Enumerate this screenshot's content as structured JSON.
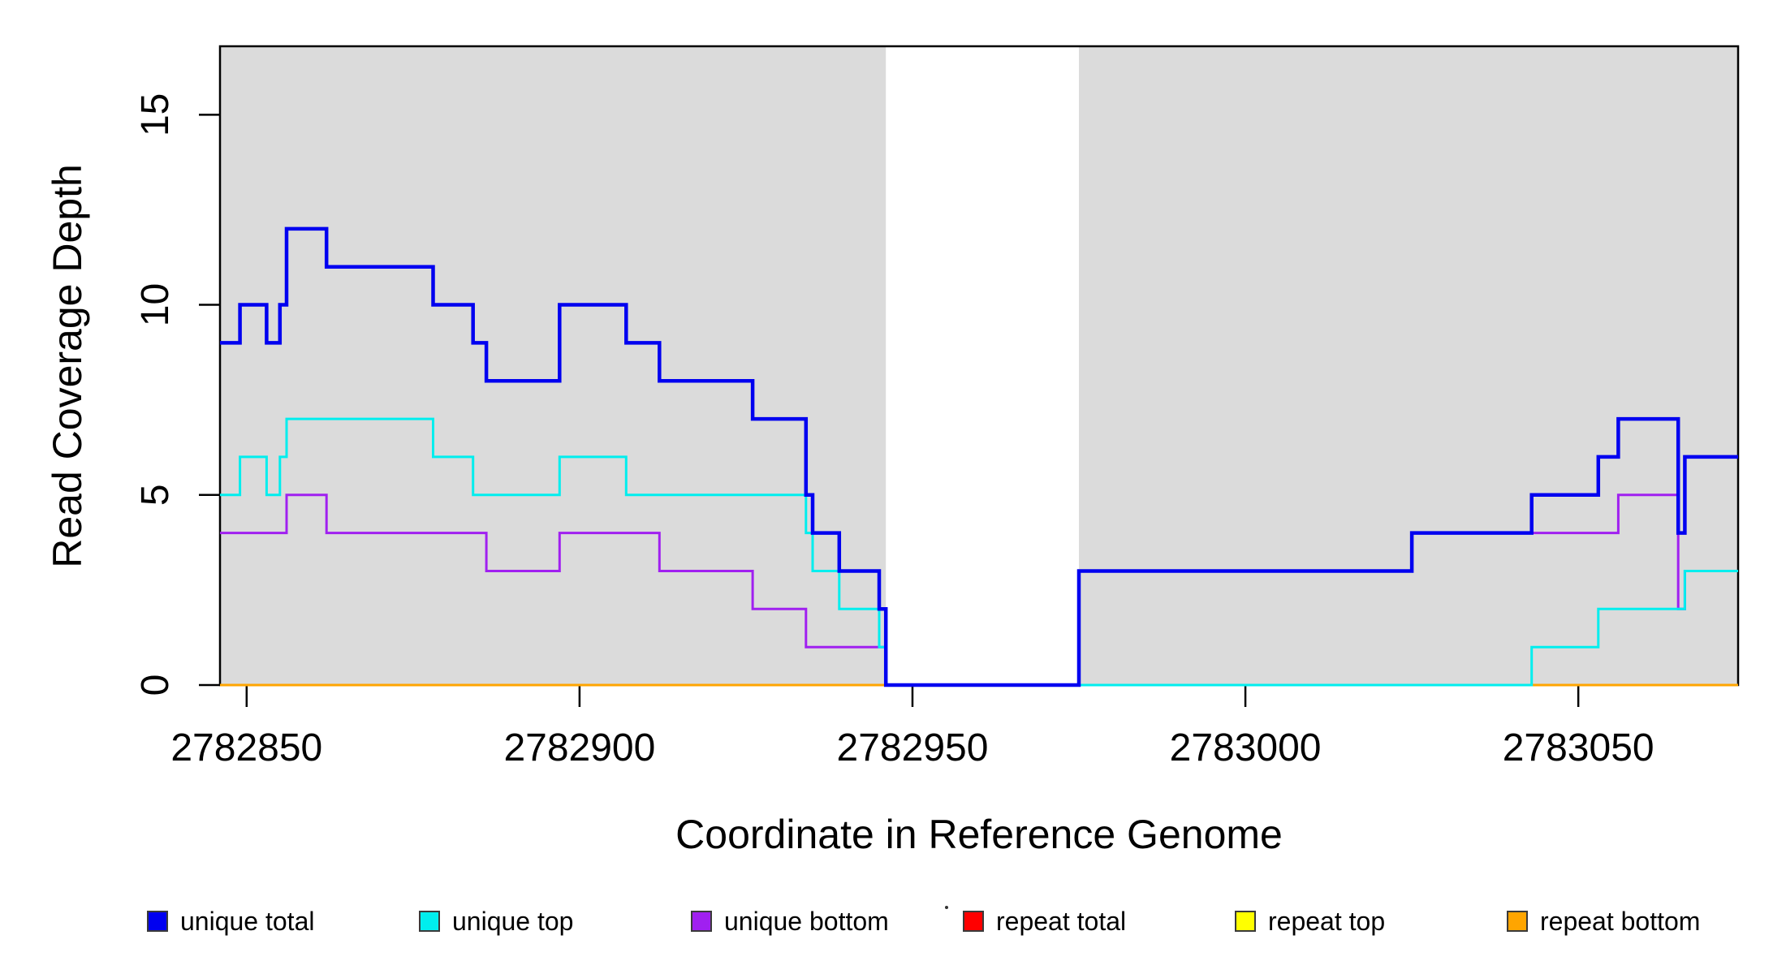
{
  "chart_data": {
    "type": "line",
    "step_style": true,
    "title": "",
    "xlabel": "Coordinate in Reference Genome",
    "ylabel": "Read Coverage Depth",
    "xlim": [
      2782846,
      2783074
    ],
    "ylim": [
      0,
      16.8
    ],
    "grid": false,
    "x_ticks": [
      {
        "value": 2782850,
        "label": "2782850"
      },
      {
        "value": 2782900,
        "label": "2782900"
      },
      {
        "value": 2782950,
        "label": "2782950"
      },
      {
        "value": 2783000,
        "label": "2783000"
      },
      {
        "value": 2783050,
        "label": "2783050"
      }
    ],
    "y_ticks": [
      {
        "value": 0,
        "label": "0"
      },
      {
        "value": 5,
        "label": "5"
      },
      {
        "value": 10,
        "label": "10"
      },
      {
        "value": 15,
        "label": "15"
      }
    ],
    "background_color": "#ffffff",
    "shaded_region_color": "#dbdbdb",
    "shaded_regions": [
      {
        "x0": 2782846,
        "x1": 2782946
      },
      {
        "x0": 2782975,
        "x1": 2783074
      }
    ],
    "series": [
      {
        "name": "repeat total",
        "color": "#ff0000",
        "line_width": 3,
        "points": [
          [
            2782846,
            0
          ]
        ]
      },
      {
        "name": "repeat top",
        "color": "#ffff00",
        "line_width": 3,
        "points": [
          [
            2782846,
            0
          ]
        ]
      },
      {
        "name": "repeat bottom",
        "color": "#ffa500",
        "line_width": 3,
        "points": [
          [
            2782846,
            0
          ]
        ]
      },
      {
        "name": "unique bottom",
        "color": "#a020f0",
        "line_width": 3,
        "points": [
          [
            2782846,
            4
          ],
          [
            2782856,
            5
          ],
          [
            2782862,
            4
          ],
          [
            2782886,
            3
          ],
          [
            2782897,
            4
          ],
          [
            2782912,
            3
          ],
          [
            2782926,
            2
          ],
          [
            2782934,
            1
          ],
          [
            2782946,
            0
          ],
          [
            2782975,
            3
          ],
          [
            2783025,
            4
          ],
          [
            2783056,
            5
          ],
          [
            2783065,
            2
          ],
          [
            2783066,
            3
          ]
        ]
      },
      {
        "name": "unique top",
        "color": "#00eeee",
        "line_width": 3,
        "points": [
          [
            2782846,
            5
          ],
          [
            2782849,
            6
          ],
          [
            2782853,
            5
          ],
          [
            2782855,
            6
          ],
          [
            2782856,
            7
          ],
          [
            2782878,
            6
          ],
          [
            2782884,
            5
          ],
          [
            2782897,
            6
          ],
          [
            2782907,
            5
          ],
          [
            2782934,
            4
          ],
          [
            2782935,
            3
          ],
          [
            2782939,
            2
          ],
          [
            2782945,
            1
          ],
          [
            2782946,
            0
          ],
          [
            2783043,
            1
          ],
          [
            2783053,
            2
          ],
          [
            2783066,
            3
          ]
        ]
      },
      {
        "name": "unique total",
        "color": "#0000f0",
        "line_width": 4.5,
        "points": [
          [
            2782846,
            9
          ],
          [
            2782849,
            10
          ],
          [
            2782853,
            9
          ],
          [
            2782855,
            10
          ],
          [
            2782856,
            12
          ],
          [
            2782862,
            11
          ],
          [
            2782878,
            10
          ],
          [
            2782884,
            9
          ],
          [
            2782886,
            8
          ],
          [
            2782897,
            10
          ],
          [
            2782907,
            9
          ],
          [
            2782912,
            8
          ],
          [
            2782926,
            7
          ],
          [
            2782934,
            5
          ],
          [
            2782935,
            4
          ],
          [
            2782939,
            3
          ],
          [
            2782945,
            2
          ],
          [
            2782946,
            0
          ],
          [
            2782975,
            3
          ],
          [
            2783025,
            4
          ],
          [
            2783043,
            5
          ],
          [
            2783053,
            6
          ],
          [
            2783056,
            7
          ],
          [
            2783065,
            4
          ],
          [
            2783066,
            6
          ]
        ]
      }
    ],
    "legend": {
      "position": "bottom",
      "entries": [
        {
          "label": "unique total",
          "color": "#0000f0"
        },
        {
          "label": "unique top",
          "color": "#00eeee"
        },
        {
          "label": "unique bottom",
          "color": "#a020f0"
        },
        {
          "label": "repeat total",
          "color": "#ff0000"
        },
        {
          "label": "repeat top",
          "color": "#ffff00"
        },
        {
          "label": "repeat bottom",
          "color": "#ffa500"
        }
      ]
    },
    "annotations": {
      "stray_dot_visible": true
    }
  }
}
